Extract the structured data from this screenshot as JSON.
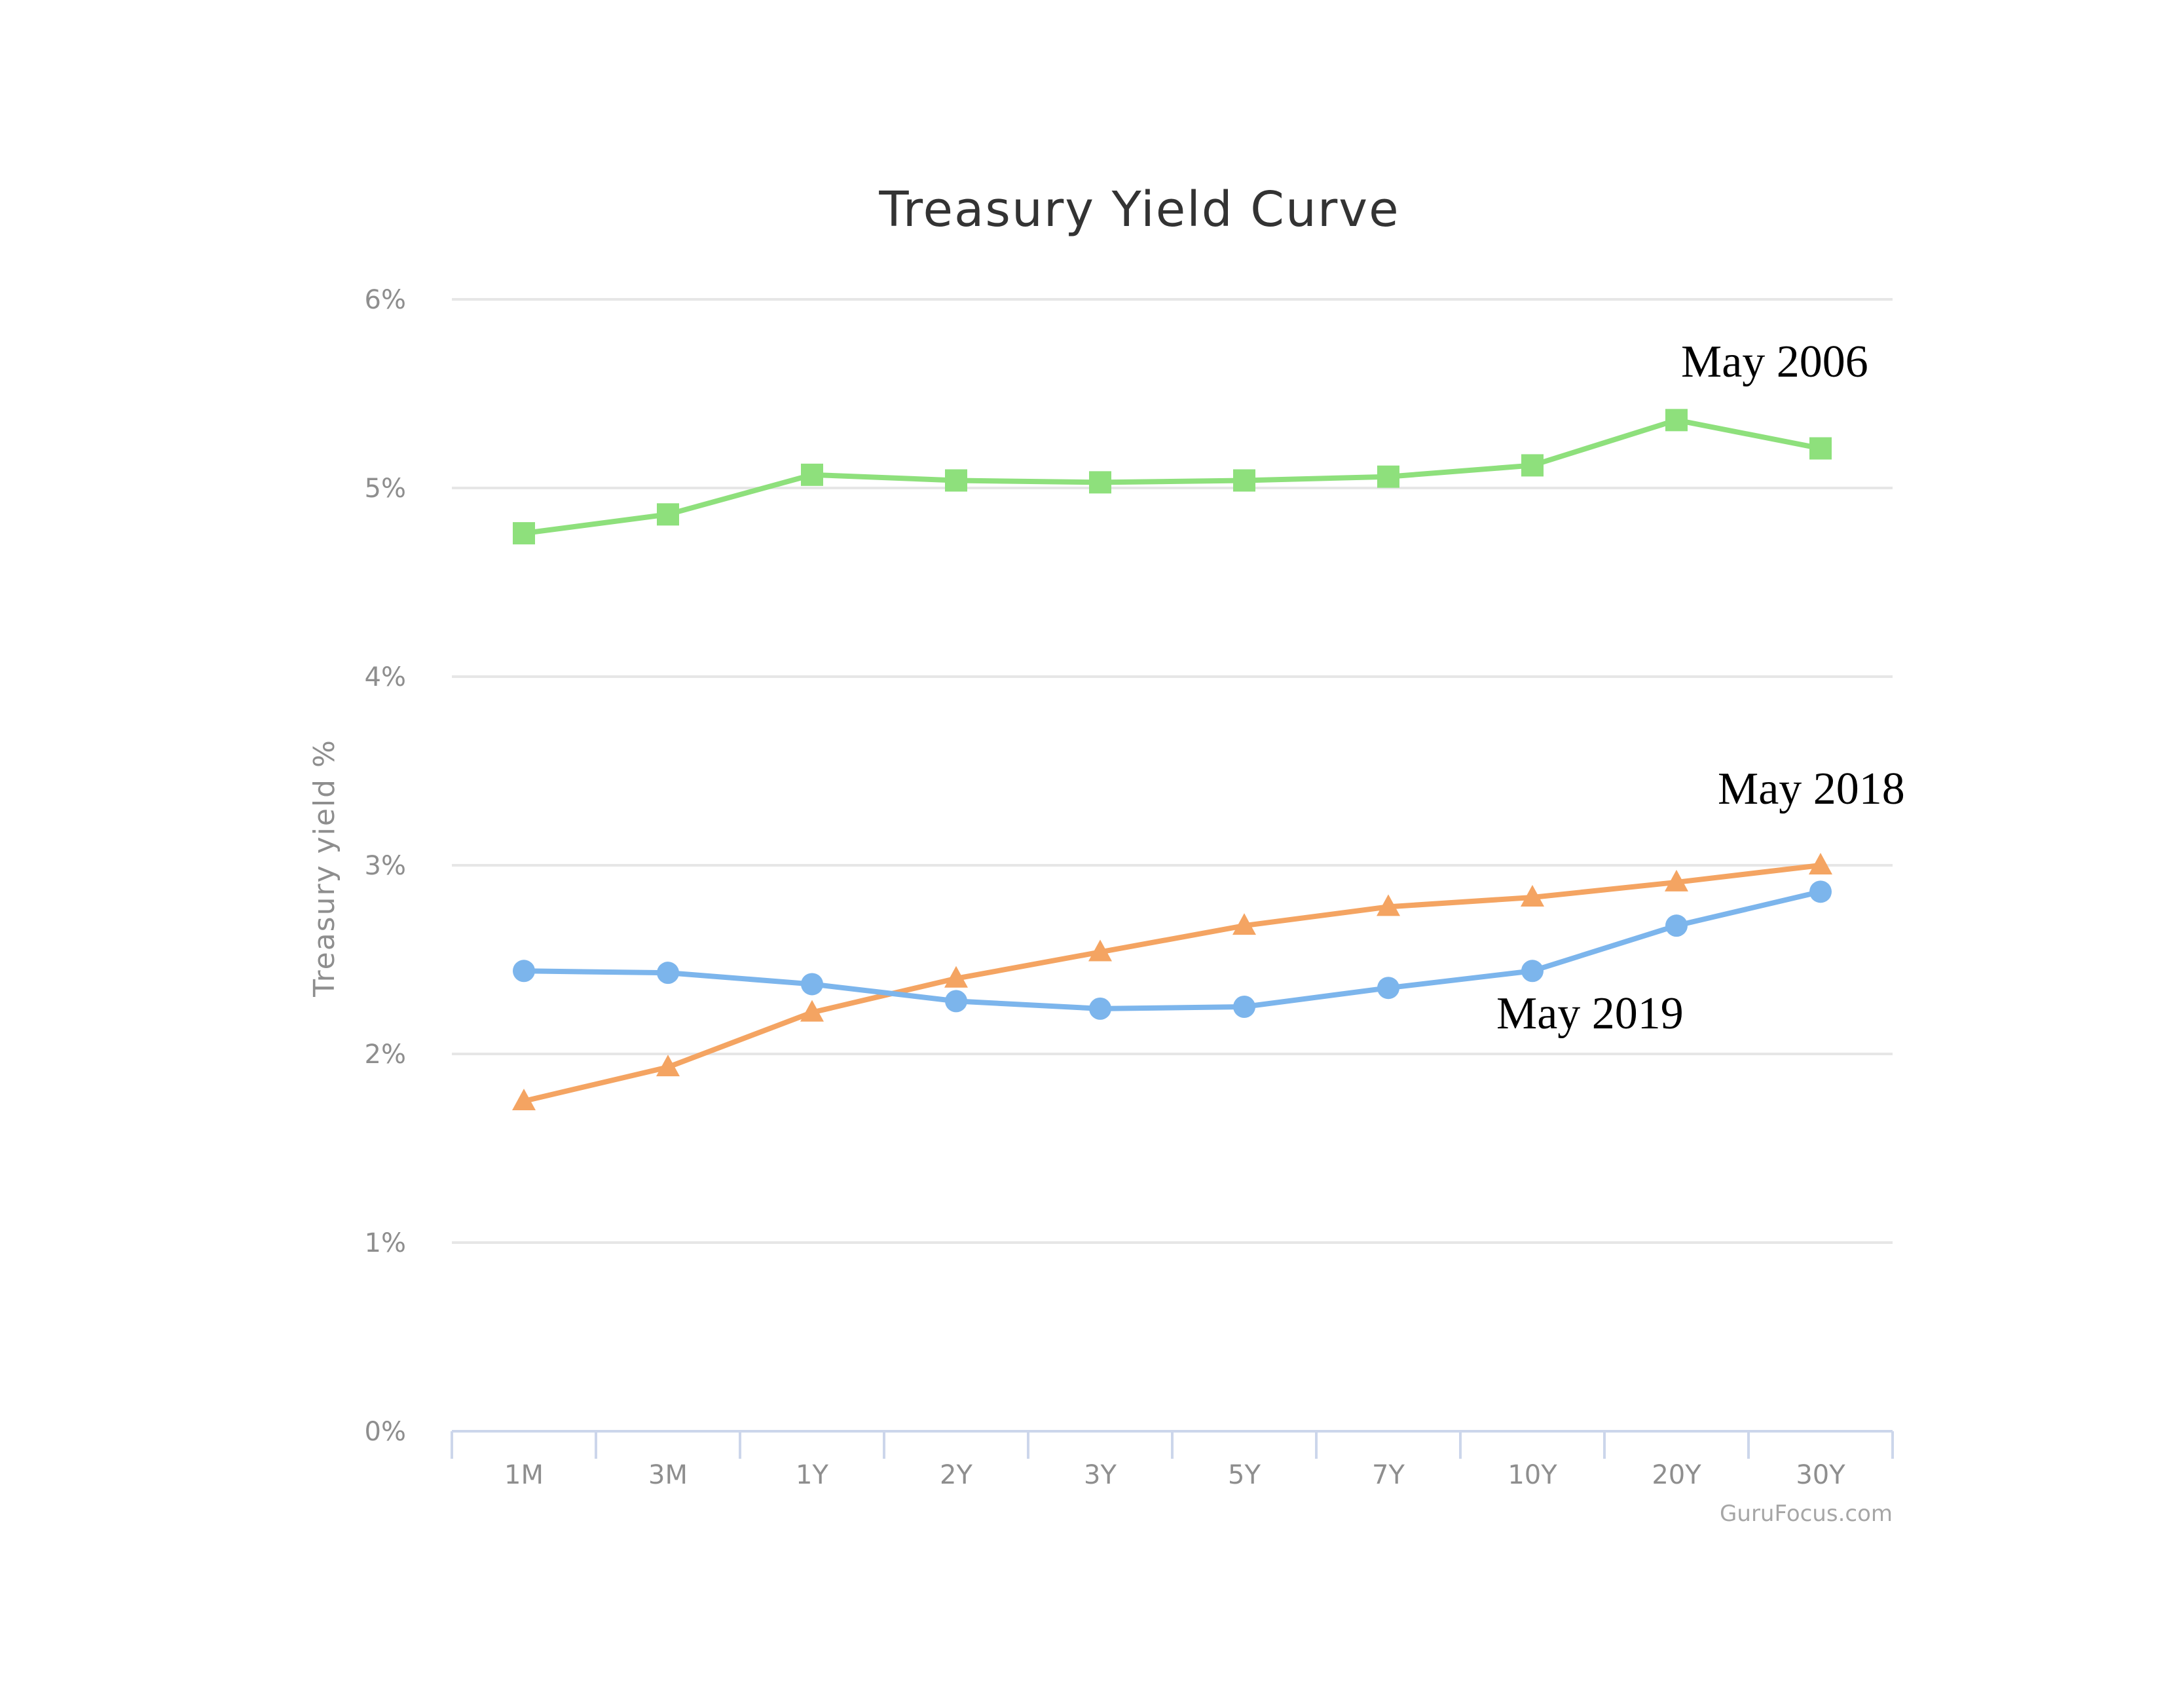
{
  "chart_data": {
    "type": "line",
    "title": "Treasury Yield Curve",
    "ylabel": "Treasury yield %",
    "xlabel": "",
    "categories": [
      "1M",
      "3M",
      "1Y",
      "2Y",
      "3Y",
      "5Y",
      "7Y",
      "10Y",
      "20Y",
      "30Y"
    ],
    "ylim": [
      0,
      6
    ],
    "yticks": [
      "0%",
      "1%",
      "2%",
      "3%",
      "4%",
      "5%",
      "6%"
    ],
    "grid": true,
    "credit": "GuruFocus.com",
    "series": [
      {
        "name": "May 2006",
        "color": "#8ee07c",
        "marker": "square",
        "values": [
          4.76,
          4.86,
          5.07,
          5.04,
          5.03,
          5.04,
          5.06,
          5.12,
          5.36,
          5.21
        ]
      },
      {
        "name": "May 2018",
        "color": "#f4a462",
        "marker": "triangle",
        "values": [
          1.75,
          1.93,
          2.22,
          2.4,
          2.54,
          2.68,
          2.78,
          2.83,
          2.91,
          3.0
        ]
      },
      {
        "name": "May 2019",
        "color": "#7cb5ec",
        "marker": "circle",
        "values": [
          2.44,
          2.43,
          2.37,
          2.28,
          2.24,
          2.25,
          2.35,
          2.44,
          2.68,
          2.86
        ]
      }
    ]
  }
}
